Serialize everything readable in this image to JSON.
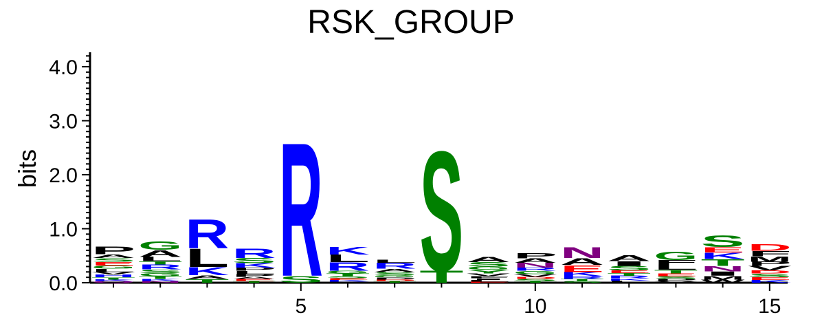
{
  "chart_data": {
    "type": "sequence-logo",
    "title": "RSK_GROUP",
    "ylabel": "bits",
    "xlabel": "",
    "ylim": [
      0,
      4.3
    ],
    "yticks": [
      "0.0",
      "1.0",
      "2.0",
      "3.0",
      "4.0"
    ],
    "xticks": [
      "5",
      "10",
      "15"
    ],
    "colors": {
      "A": "#000000",
      "C": "#008000",
      "D": "#ff0000",
      "E": "#ff0000",
      "F": "#000000",
      "G": "#008000",
      "H": "#0000ff",
      "I": "#000000",
      "K": "#0000ff",
      "L": "#000000",
      "M": "#000000",
      "N": "#800080",
      "P": "#000000",
      "Q": "#800080",
      "R": "#0000ff",
      "S": "#008000",
      "T": "#008000",
      "V": "#000000",
      "W": "#000000",
      "Y": "#008000"
    },
    "positions": [
      {
        "pos": 1,
        "letters": [
          [
            "Q",
            0.03
          ],
          [
            "K",
            0.03
          ],
          [
            "T",
            0.04
          ],
          [
            "H",
            0.05
          ],
          [
            "V",
            0.05
          ],
          [
            "L",
            0.06
          ],
          [
            "G",
            0.06
          ],
          [
            "E",
            0.07
          ],
          [
            "S",
            0.07
          ],
          [
            "A",
            0.07
          ],
          [
            "P",
            0.14
          ]
        ]
      },
      {
        "pos": 2,
        "letters": [
          [
            "N",
            0.03
          ],
          [
            "K",
            0.04
          ],
          [
            "T",
            0.05
          ],
          [
            "G",
            0.06
          ],
          [
            "S",
            0.07
          ],
          [
            "R",
            0.09
          ],
          [
            "T",
            0.06
          ],
          [
            "L",
            0.08
          ],
          [
            "A",
            0.13
          ],
          [
            "G",
            0.16
          ]
        ]
      },
      {
        "pos": 3,
        "letters": [
          [
            "T",
            0.07
          ],
          [
            "A",
            0.07
          ],
          [
            "K",
            0.15
          ],
          [
            "L",
            0.35
          ],
          [
            "R",
            0.55
          ]
        ]
      },
      {
        "pos": 4,
        "letters": [
          [
            "T",
            0.03
          ],
          [
            "E",
            0.04
          ],
          [
            "A",
            0.04
          ],
          [
            "P",
            0.05
          ],
          [
            "L",
            0.06
          ],
          [
            "P",
            0.06
          ],
          [
            "K",
            0.08
          ],
          [
            "S",
            0.1
          ],
          [
            "R",
            0.18
          ]
        ]
      },
      {
        "pos": 5,
        "letters": [
          [
            "S",
            0.13
          ],
          [
            "R",
            2.55
          ]
        ]
      },
      {
        "pos": 6,
        "letters": [
          [
            "V",
            0.02
          ],
          [
            "K",
            0.03
          ],
          [
            "E",
            0.03
          ],
          [
            "S",
            0.04
          ],
          [
            "T",
            0.05
          ],
          [
            "G",
            0.05
          ],
          [
            "R",
            0.16
          ],
          [
            "L",
            0.14
          ],
          [
            "K",
            0.14
          ]
        ]
      },
      {
        "pos": 7,
        "letters": [
          [
            "T",
            0.03
          ],
          [
            "D",
            0.03
          ],
          [
            "P",
            0.04
          ],
          [
            "G",
            0.04
          ],
          [
            "S",
            0.06
          ],
          [
            "A",
            0.06
          ],
          [
            "R",
            0.11
          ],
          [
            "L",
            0.06
          ]
        ]
      },
      {
        "pos": 8,
        "letters": [
          [
            "T",
            0.23
          ],
          [
            "S",
            2.28
          ]
        ]
      },
      {
        "pos": 9,
        "letters": [
          [
            "E",
            0.02
          ],
          [
            "L",
            0.03
          ],
          [
            "I",
            0.03
          ],
          [
            "F",
            0.04
          ],
          [
            "V",
            0.05
          ],
          [
            "Y",
            0.07
          ],
          [
            "G",
            0.06
          ],
          [
            "S",
            0.08
          ],
          [
            "A",
            0.1
          ]
        ]
      },
      {
        "pos": 10,
        "letters": [
          [
            "T",
            0.03
          ],
          [
            "S",
            0.04
          ],
          [
            "D",
            0.04
          ],
          [
            "V",
            0.05
          ],
          [
            "G",
            0.06
          ],
          [
            "R",
            0.06
          ],
          [
            "N",
            0.09
          ],
          [
            "A",
            0.08
          ],
          [
            "P",
            0.1
          ]
        ]
      },
      {
        "pos": 11,
        "letters": [
          [
            "S",
            0.03
          ],
          [
            "T",
            0.04
          ],
          [
            "R",
            0.05
          ],
          [
            "K",
            0.08
          ],
          [
            "E",
            0.13
          ],
          [
            "A",
            0.13
          ],
          [
            "N",
            0.2
          ]
        ]
      },
      {
        "pos": 12,
        "letters": [
          [
            "L",
            0.04
          ],
          [
            "K",
            0.04
          ],
          [
            "R",
            0.05
          ],
          [
            "T",
            0.05
          ],
          [
            "E",
            0.05
          ],
          [
            "S",
            0.08
          ],
          [
            "I",
            0.09
          ],
          [
            "A",
            0.11
          ]
        ]
      },
      {
        "pos": 13,
        "letters": [
          [
            "V",
            0.03
          ],
          [
            "P",
            0.04
          ],
          [
            "S",
            0.05
          ],
          [
            "E",
            0.05
          ],
          [
            "T",
            0.07
          ],
          [
            "L",
            0.1
          ],
          [
            "F",
            0.08
          ],
          [
            "G",
            0.16
          ]
        ]
      },
      {
        "pos": 14,
        "letters": [
          [
            "W",
            0.06
          ],
          [
            "M",
            0.07
          ],
          [
            "I",
            0.08
          ],
          [
            "N",
            0.1
          ],
          [
            "T",
            0.13
          ],
          [
            "K",
            0.12
          ],
          [
            "E",
            0.1
          ],
          [
            "S",
            0.22
          ]
        ]
      },
      {
        "pos": 15,
        "letters": [
          [
            "K",
            0.05
          ],
          [
            "E",
            0.05
          ],
          [
            "S",
            0.07
          ],
          [
            "D",
            0.06
          ],
          [
            "V",
            0.08
          ],
          [
            "P",
            0.08
          ],
          [
            "M",
            0.1
          ],
          [
            "F",
            0.1
          ],
          [
            "D",
            0.13
          ]
        ]
      }
    ]
  }
}
